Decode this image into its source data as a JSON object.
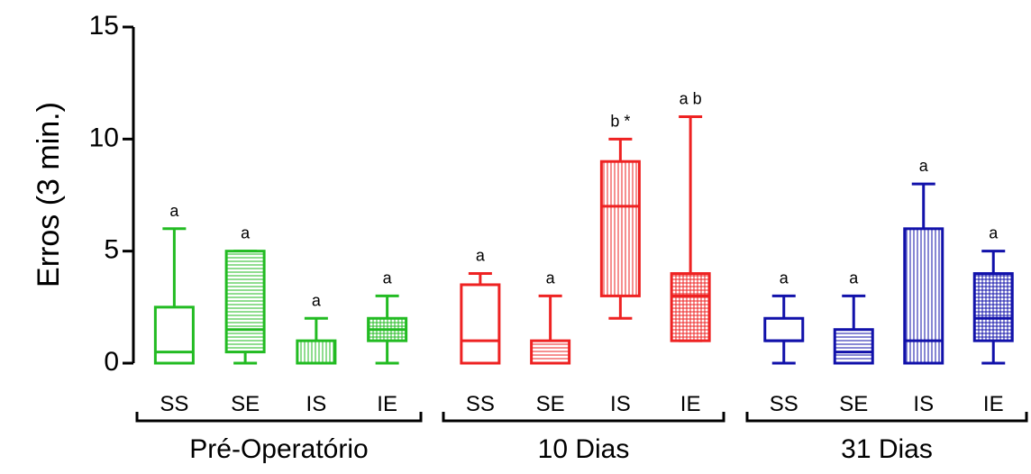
{
  "chart_data": {
    "type": "box",
    "ylabel": "Erros (3 min.)",
    "xlabel": "",
    "ylim": [
      0,
      15
    ],
    "yticks": [
      0,
      5,
      10,
      15
    ],
    "groups": [
      {
        "name": "Pré-Operatório",
        "color": "#22bb22",
        "categories": [
          {
            "label": "SS",
            "min": 0,
            "q1": 0,
            "median": 0.5,
            "q3": 2.5,
            "max": 6,
            "annotation": "a",
            "pattern": "none"
          },
          {
            "label": "SE",
            "min": 0,
            "q1": 0.5,
            "median": 1.5,
            "q3": 5,
            "max": 5,
            "annotation": "a",
            "pattern": "horizontal"
          },
          {
            "label": "IS",
            "min": 0,
            "q1": 0,
            "median": 0,
            "q3": 1,
            "max": 2,
            "annotation": "a",
            "pattern": "vertical"
          },
          {
            "label": "IE",
            "min": 0,
            "q1": 1,
            "median": 1.5,
            "q3": 2,
            "max": 3,
            "annotation": "a",
            "pattern": "grid"
          }
        ]
      },
      {
        "name": "10 Dias",
        "color": "#ee2222",
        "categories": [
          {
            "label": "SS",
            "min": 0,
            "q1": 0,
            "median": 1,
            "q3": 3.5,
            "max": 4,
            "annotation": "a",
            "pattern": "none"
          },
          {
            "label": "SE",
            "min": 0,
            "q1": 0,
            "median": 0,
            "q3": 1,
            "max": 3,
            "annotation": "a",
            "pattern": "horizontal"
          },
          {
            "label": "IS",
            "min": 2,
            "q1": 3,
            "median": 7,
            "q3": 9,
            "max": 10,
            "annotation": "b *",
            "pattern": "vertical"
          },
          {
            "label": "IE",
            "min": 1,
            "q1": 1,
            "median": 3,
            "q3": 4,
            "max": 11,
            "annotation": "a b",
            "pattern": "grid"
          }
        ]
      },
      {
        "name": "31 Dias",
        "color": "#1111aa",
        "categories": [
          {
            "label": "SS",
            "min": 0,
            "q1": 1,
            "median": 1,
            "q3": 2,
            "max": 3,
            "annotation": "a",
            "pattern": "none"
          },
          {
            "label": "SE",
            "min": 0,
            "q1": 0,
            "median": 0.5,
            "q3": 1.5,
            "max": 3,
            "annotation": "a",
            "pattern": "horizontal"
          },
          {
            "label": "IS",
            "min": 0,
            "q1": 0,
            "median": 1,
            "q3": 6,
            "max": 8,
            "annotation": "a",
            "pattern": "vertical"
          },
          {
            "label": "IE",
            "min": 0,
            "q1": 1,
            "median": 2,
            "q3": 4,
            "max": 5,
            "annotation": "a",
            "pattern": "grid"
          }
        ]
      }
    ]
  }
}
